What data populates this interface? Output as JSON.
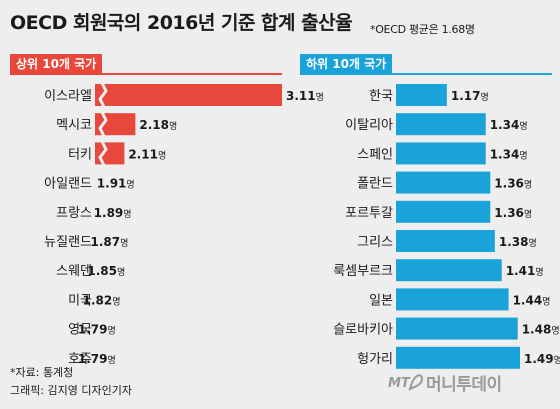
{
  "title": "OECD 회원국의 2016년 기준 합계 출산율",
  "note": "*OECD 평균은 1.68명",
  "footer": {
    "source": "*자료: 통계청",
    "credit": "그래픽: 김지영 디자인기자"
  },
  "brand": {
    "logo_text": "MT",
    "name": "머니투데이"
  },
  "colors": {
    "top": "#e8473b",
    "bottom": "#1aa3d9"
  },
  "chart_data": [
    {
      "type": "bar",
      "orientation": "horizontal",
      "panel_label": "상위 10개 국가",
      "unit": "명",
      "categories": [
        "이스라엘",
        "멕시코",
        "터키",
        "아일랜드",
        "프랑스",
        "뉴질랜드",
        "스웨덴",
        "미국",
        "영국",
        "호주"
      ],
      "values": [
        3.11,
        2.18,
        2.11,
        1.91,
        1.89,
        1.87,
        1.85,
        1.82,
        1.79,
        1.79
      ],
      "labels": [
        "3.11",
        "2.18",
        "2.11",
        "1.91",
        "1.89",
        "1.87",
        "1.85",
        "1.82",
        "1.79",
        "1.79"
      ],
      "axis_break": true
    },
    {
      "type": "bar",
      "orientation": "horizontal",
      "panel_label": "하위 10개 국가",
      "unit": "명",
      "categories": [
        "한국",
        "이탈리아",
        "스페인",
        "폴란드",
        "포르투갈",
        "그리스",
        "룩셈부르크",
        "일본",
        "슬로바키아",
        "헝가리"
      ],
      "values": [
        1.17,
        1.34,
        1.34,
        1.36,
        1.36,
        1.38,
        1.41,
        1.44,
        1.48,
        1.49
      ],
      "labels": [
        "1.17",
        "1.34",
        "1.34",
        "1.36",
        "1.36",
        "1.38",
        "1.41",
        "1.44",
        "1.48",
        "1.49"
      ],
      "axis_break": false
    }
  ]
}
